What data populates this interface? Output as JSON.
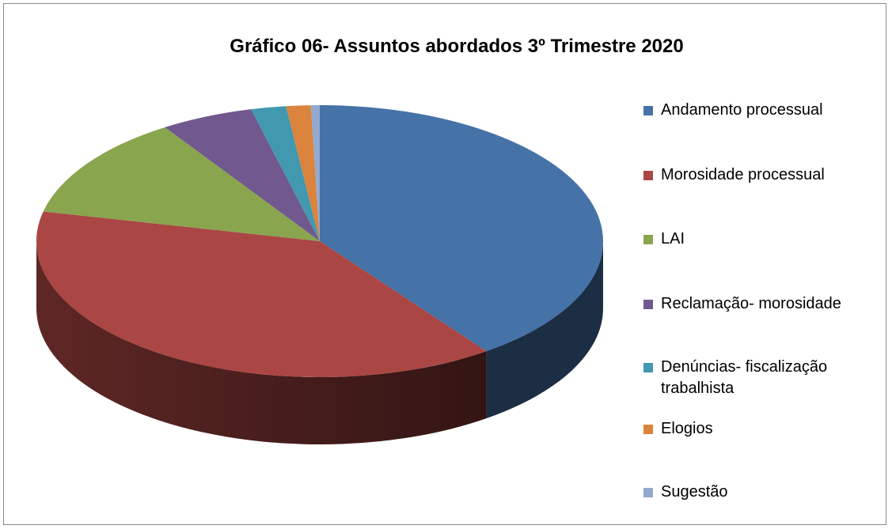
{
  "chart_data": {
    "type": "pie3d",
    "title": "Gráfico 06- Assuntos abordados 3º Trimestre 2020",
    "categories": [
      "Andamento processual",
      "Morosidade processual",
      "LAI",
      "Reclamação- morosidade",
      "Denúncias- fiscalização trabalhista",
      "Elogios",
      "Sugestão"
    ],
    "values": [
      40,
      38.5,
      12.3,
      5.3,
      2,
      1.4,
      0.5
    ],
    "colors": [
      "#4572a7",
      "#aa4643",
      "#89a54e",
      "#71588f",
      "#4198af",
      "#db843d",
      "#93a9cf"
    ],
    "legend": "right"
  }
}
